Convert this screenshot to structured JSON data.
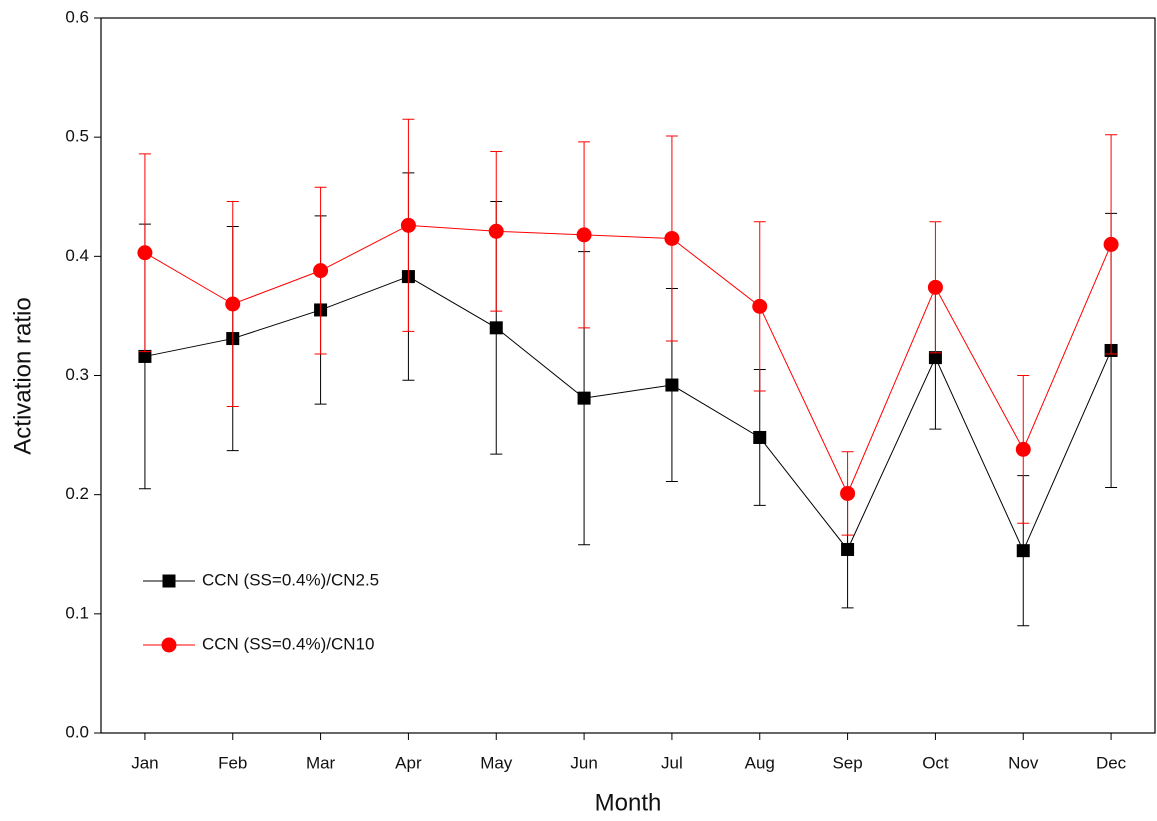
{
  "chart_data": {
    "type": "line",
    "x_label": "Month",
    "y_label": "Activation ratio",
    "categories": [
      "Jan",
      "Feb",
      "Mar",
      "Apr",
      "May",
      "Jun",
      "Jul",
      "Aug",
      "Sep",
      "Oct",
      "Nov",
      "Dec"
    ],
    "series": [
      {
        "name": "CCN (SS=0.4%)/CN2.5",
        "color": "#000000",
        "marker": "square",
        "values": [
          0.316,
          0.331,
          0.355,
          0.383,
          0.34,
          0.281,
          0.292,
          0.248,
          0.154,
          0.315,
          0.153,
          0.321
        ],
        "errors": [
          0.111,
          0.094,
          0.079,
          0.087,
          0.106,
          0.123,
          0.081,
          0.057,
          0.049,
          0.06,
          0.063,
          0.115
        ]
      },
      {
        "name": "CCN (SS=0.4%)/CN10",
        "color": "#ff0000",
        "marker": "circle",
        "values": [
          0.403,
          0.36,
          0.388,
          0.426,
          0.421,
          0.418,
          0.415,
          0.358,
          0.201,
          0.374,
          0.238,
          0.41
        ],
        "errors": [
          0.083,
          0.086,
          0.07,
          0.089,
          0.067,
          0.078,
          0.086,
          0.071,
          0.035,
          0.055,
          0.062,
          0.092
        ]
      }
    ],
    "ylim": [
      0,
      0.6
    ],
    "yticks": [
      {
        "value": 0,
        "label": "0.0"
      },
      0.1,
      0.2,
      0.3,
      0.4,
      0.5,
      0.6
    ],
    "grid": false,
    "legend_position": "left"
  }
}
